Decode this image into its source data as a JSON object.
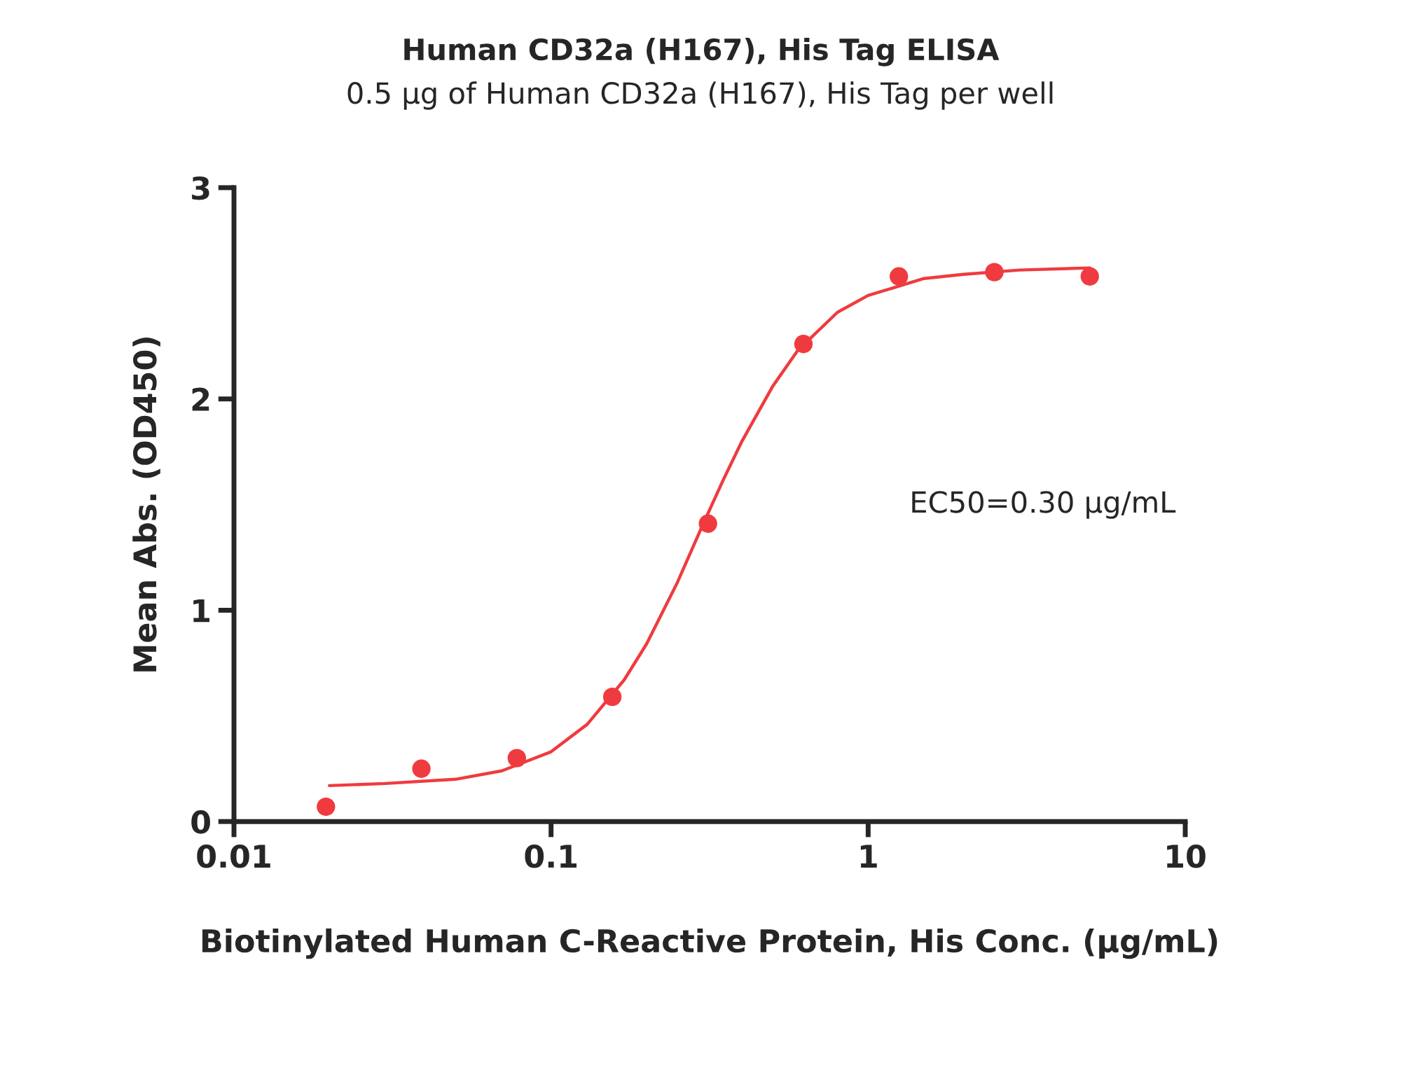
{
  "chart_data": {
    "type": "scatter",
    "title": "Human CD32a (H167), His Tag ELISA",
    "subtitle": "0.5 μg of Human CD32a (H167), His Tag per well",
    "xlabel": "Biotinylated Human C-Reactive Protein, His Conc. (μg/mL)",
    "ylabel": "Mean Abs. (OD450)",
    "log": "x",
    "xlim": [
      0.01,
      10
    ],
    "xticks": [
      0.01,
      0.1,
      1,
      10
    ],
    "ylim": [
      0,
      3
    ],
    "yticks": [
      0,
      1,
      2,
      3
    ],
    "grid": false,
    "legend": false,
    "series": [
      {
        "type": "scatter",
        "marker": "circle",
        "color": "#ef3b3f",
        "x": [
          0.0195,
          0.039,
          0.078,
          0.156,
          0.3125,
          0.625,
          1.25,
          2.5,
          5
        ],
        "values": [
          0.07,
          0.25,
          0.3,
          0.59,
          1.41,
          2.26,
          2.58,
          2.6,
          2.58
        ]
      },
      {
        "type": "line",
        "marker": "none",
        "line_style": "solid",
        "color": "#ef3b3f",
        "x": [
          0.02,
          0.03,
          0.05,
          0.07,
          0.1,
          0.13,
          0.17,
          0.2,
          0.25,
          0.3,
          0.35,
          0.4,
          0.5,
          0.6,
          0.8,
          1,
          1.5,
          2,
          3,
          5
        ],
        "values": [
          0.17,
          0.18,
          0.2,
          0.24,
          0.33,
          0.46,
          0.67,
          0.84,
          1.13,
          1.4,
          1.62,
          1.8,
          2.06,
          2.23,
          2.41,
          2.49,
          2.57,
          2.59,
          2.61,
          2.62
        ]
      }
    ],
    "annotations": [
      "EC50=0.30 μg/mL"
    ]
  }
}
